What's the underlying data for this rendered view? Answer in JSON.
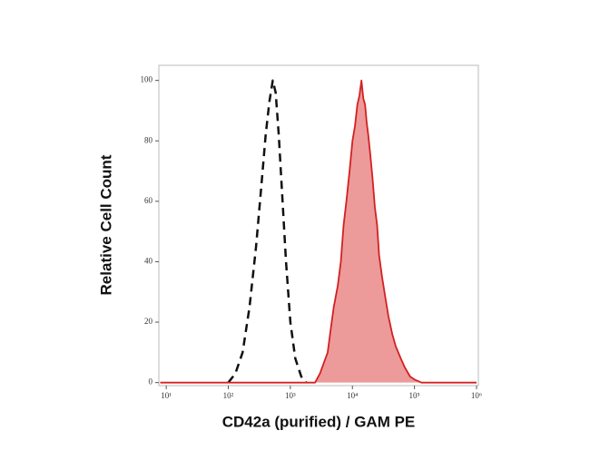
{
  "chart_data": {
    "type": "line",
    "xlabel": "CD42a (purified) / GAM PE",
    "ylabel": "Relative Cell Count",
    "xscale": "log",
    "xlim": [
      7.6,
      1070000
    ],
    "ylim": [
      -1,
      105
    ],
    "xticks": [
      {
        "value": 10,
        "label": "10¹"
      },
      {
        "value": 100,
        "label": "10²"
      },
      {
        "value": 1000,
        "label": "10³"
      },
      {
        "value": 10000,
        "label": "10⁴"
      },
      {
        "value": 100000,
        "label": "10⁵"
      },
      {
        "value": 1000000,
        "label": "10⁶"
      }
    ],
    "yticks": [
      0,
      20,
      40,
      60,
      80,
      100
    ],
    "series": [
      {
        "color": "#111111",
        "dashed": true,
        "filled": false,
        "x": [
          100,
          130,
          170,
          220,
          280,
          340,
          400,
          460,
          520,
          580,
          650,
          750,
          850,
          1000,
          1200,
          1500,
          1800
        ],
        "values": [
          0,
          3,
          10,
          25,
          45,
          65,
          82,
          93,
          100,
          96,
          82,
          60,
          40,
          20,
          8,
          2,
          0
        ]
      },
      {
        "color": "#d42020",
        "dashed": false,
        "filled": true,
        "x": [
          8,
          2500,
          3000,
          4000,
          4500,
          5000,
          5800,
          6500,
          7200,
          8000,
          9000,
          10000,
          11000,
          12000,
          13000,
          14000,
          15000,
          16000,
          17000,
          18000,
          19500,
          21000,
          23000,
          25000,
          27000,
          30000,
          34000,
          38000,
          44000,
          50000,
          60000,
          70000,
          85000,
          100000,
          130000,
          1000000
        ],
        "values": [
          0,
          0,
          3,
          10,
          18,
          25,
          32,
          40,
          52,
          60,
          70,
          80,
          85,
          92,
          95,
          100,
          94,
          92,
          86,
          82,
          75,
          68,
          58,
          52,
          42,
          35,
          28,
          22,
          16,
          12,
          8,
          5,
          2,
          1,
          0,
          0
        ]
      }
    ]
  }
}
